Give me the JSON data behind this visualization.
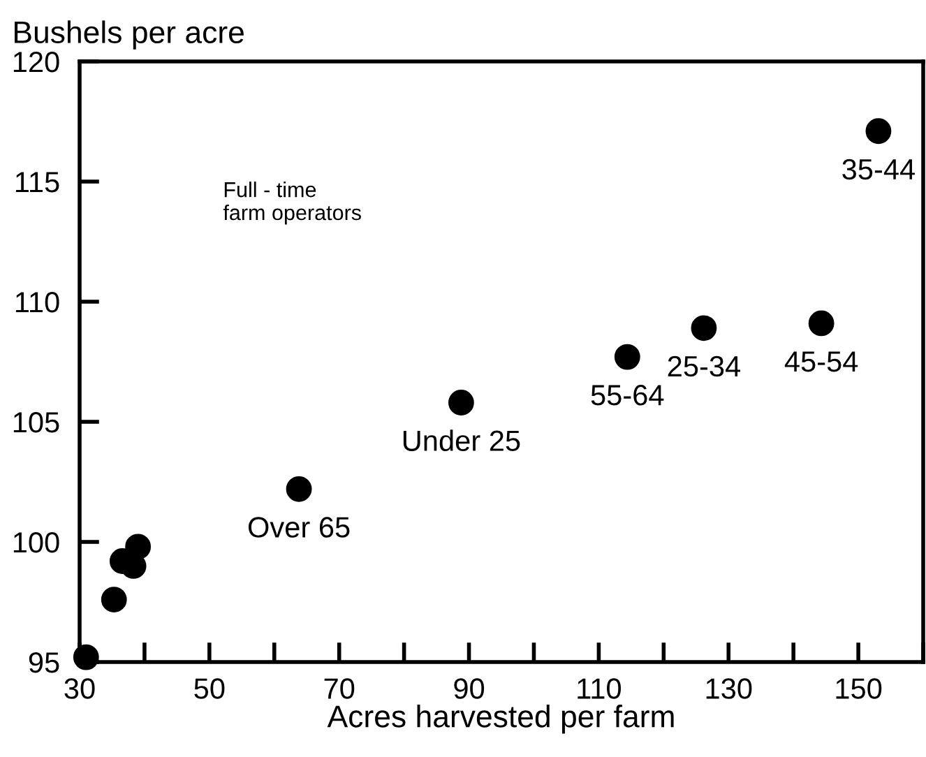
{
  "chart_data": {
    "type": "scatter",
    "ylabel": "Bushels per acre",
    "xlabel": "Acres harvested per farm",
    "x": [
      31,
      35.3,
      36.6,
      38.3,
      39.0,
      63.8,
      88.8,
      114.4,
      126.2,
      144.3,
      153.1
    ],
    "values": [
      95.2,
      97.6,
      99.2,
      99.0,
      99.8,
      102.2,
      105.8,
      107.7,
      108.9,
      109.1,
      117.1
    ],
    "color": "#000000",
    "marker": "circle",
    "annotations": [
      "Full - time\nfarm operators",
      {
        "text": "Over 65",
        "x": 63.8,
        "y": 102.2
      },
      {
        "text": "Under 25",
        "x": 88.8,
        "y": 105.8
      },
      {
        "text": "55-64",
        "x": 114.4,
        "y": 107.7
      },
      {
        "text": "25-34",
        "x": 126.2,
        "y": 108.9
      },
      {
        "text": "45-54",
        "x": 144.3,
        "y": 109.1
      },
      {
        "text": "35-44",
        "x": 153.1,
        "y": 117.1
      }
    ],
    "xlim": [
      30,
      160
    ],
    "ylim": [
      95,
      120
    ],
    "xticks": [
      30,
      {
        "value": 40,
        "label": null
      },
      50,
      {
        "value": 60,
        "label": null
      },
      70,
      {
        "value": 80,
        "label": null
      },
      90,
      {
        "value": 100,
        "label": null
      },
      110,
      {
        "value": 120,
        "label": null
      },
      130,
      {
        "value": 140,
        "label": null
      },
      150,
      {
        "value": 160,
        "label": null
      }
    ],
    "yticks": [
      95,
      100,
      105,
      110,
      115,
      120
    ],
    "grid": false,
    "legend": false
  }
}
